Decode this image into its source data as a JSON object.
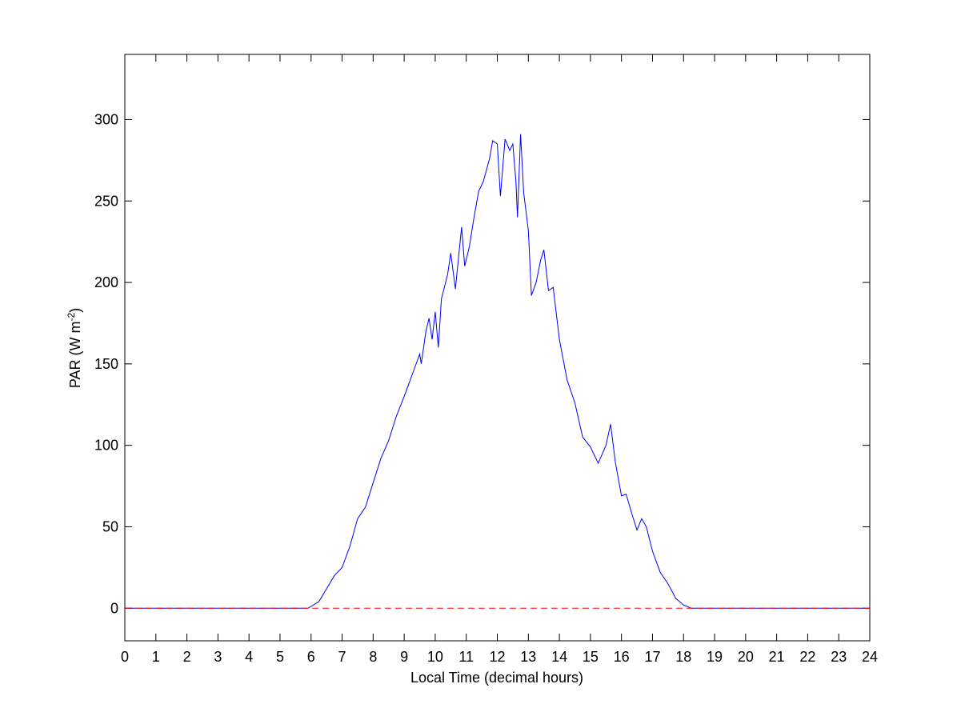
{
  "chart_data": {
    "type": "line",
    "xlabel": "Local Time (decimal hours)",
    "ylabel": [
      "PAR (W m",
      "-2",
      ")"
    ],
    "xlim": [
      0,
      24
    ],
    "xticks": [
      0,
      1,
      2,
      3,
      4,
      5,
      6,
      7,
      8,
      9,
      10,
      11,
      12,
      13,
      14,
      15,
      16,
      17,
      18,
      19,
      20,
      21,
      22,
      23,
      24
    ],
    "ylim": [
      -20,
      340
    ],
    "yticks": [
      0,
      50,
      100,
      150,
      200,
      250,
      300
    ],
    "grid": false,
    "series": [
      {
        "color": "#0000ff",
        "dash": false,
        "x": [
          0,
          5.9,
          6.25,
          6.5,
          6.75,
          7,
          7.25,
          7.5,
          7.75,
          8,
          8.25,
          8.5,
          8.75,
          9,
          9.25,
          9.5,
          9.55,
          9.7,
          9.8,
          9.9,
          10,
          10.1,
          10.2,
          10.4,
          10.5,
          10.65,
          10.75,
          10.85,
          10.95,
          11.1,
          11.25,
          11.4,
          11.55,
          11.75,
          11.85,
          12,
          12.1,
          12.25,
          12.4,
          12.5,
          12.6,
          12.65,
          12.75,
          12.85,
          13,
          13.1,
          13.25,
          13.4,
          13.5,
          13.65,
          13.8,
          14,
          14.25,
          14.5,
          14.75,
          15,
          15.25,
          15.5,
          15.65,
          15.8,
          16,
          16.15,
          16.35,
          16.5,
          16.65,
          16.8,
          17,
          17.25,
          17.5,
          17.75,
          18,
          18.25,
          24
        ],
        "values": [
          0,
          0,
          4,
          12,
          20,
          25,
          38,
          55,
          62,
          77,
          92,
          103,
          118,
          130,
          143,
          156,
          150,
          170,
          178,
          165,
          182,
          160,
          190,
          205,
          218,
          196,
          215,
          234,
          210,
          222,
          240,
          256,
          262,
          276,
          287,
          285,
          253,
          288,
          281,
          285,
          262,
          240,
          291,
          255,
          232,
          192,
          200,
          214,
          220,
          195,
          197,
          165,
          140,
          126,
          105,
          99,
          89,
          100,
          113,
          90,
          69,
          70,
          57,
          48,
          55,
          50,
          35,
          22,
          15,
          6,
          2,
          0,
          0
        ]
      },
      {
        "color": "#ff0000",
        "dash": true,
        "x": [
          0,
          24
        ],
        "values": [
          0,
          0
        ]
      }
    ]
  }
}
